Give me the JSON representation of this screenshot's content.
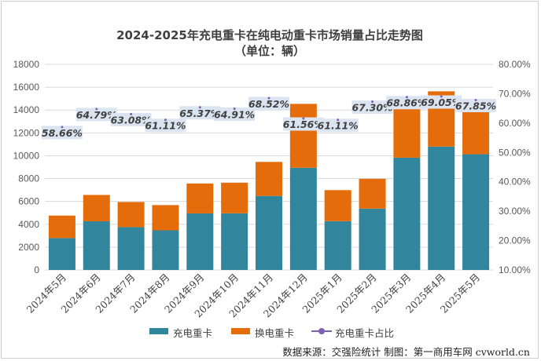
{
  "chart_data": {
    "type": "bar",
    "title": "2024-2025年充电重卡在纯电动重卡市场销量占比走势图",
    "subtitle": "（单位：辆）",
    "categories": [
      "2024年5月",
      "2024年6月",
      "2024年7月",
      "2024年8月",
      "2024年9月",
      "2024年10月",
      "2024年11月",
      "2024年12月",
      "2025年1月",
      "2025年2月",
      "2025年3月",
      "2025年4月",
      "2025年5月"
    ],
    "series": [
      {
        "name": "充电重卡",
        "kind": "stacked-bar",
        "axis": "left",
        "color": "#31859c",
        "values": [
          2790,
          4260,
          3750,
          3470,
          4950,
          4960,
          6480,
          8950,
          4270,
          5370,
          9830,
          10800,
          10130
        ]
      },
      {
        "name": "换电重卡",
        "kind": "stacked-bar",
        "axis": "left",
        "color": "#e46c0a",
        "values": [
          1970,
          2310,
          2200,
          2210,
          2620,
          2680,
          2980,
          5590,
          2720,
          2610,
          4450,
          4840,
          4800
        ]
      },
      {
        "name": "充电重卡占比",
        "kind": "line-labels",
        "axis": "right",
        "color": "#7f5fb0",
        "values": [
          58.66,
          64.79,
          63.08,
          61.11,
          65.37,
          64.91,
          68.52,
          61.56,
          61.11,
          67.3,
          68.86,
          69.05,
          67.85
        ],
        "labels": [
          "58.66%",
          "64.79%",
          "63.08%",
          "61.11%",
          "65.37%",
          "64.91%",
          "68.52%",
          "61.56%",
          "61.11%",
          "67.30%",
          "68.86%",
          "69.05%",
          "67.85%"
        ]
      }
    ],
    "y_left": {
      "min": 0,
      "max": 18000,
      "step": 2000,
      "ticks": [
        "0",
        "2000",
        "4000",
        "6000",
        "8000",
        "10000",
        "12000",
        "14000",
        "16000",
        "18000"
      ]
    },
    "y_right": {
      "min": 10,
      "max": 80,
      "step": 10,
      "ticks": [
        "10.00%",
        "20.00%",
        "30.00%",
        "40.00%",
        "50.00%",
        "60.00%",
        "70.00%",
        "80.00%"
      ]
    },
    "grid": true,
    "legend_position": "bottom"
  },
  "source_note": "数据来源：交强险统计  制图：第一商用车网 cvworld.cn"
}
